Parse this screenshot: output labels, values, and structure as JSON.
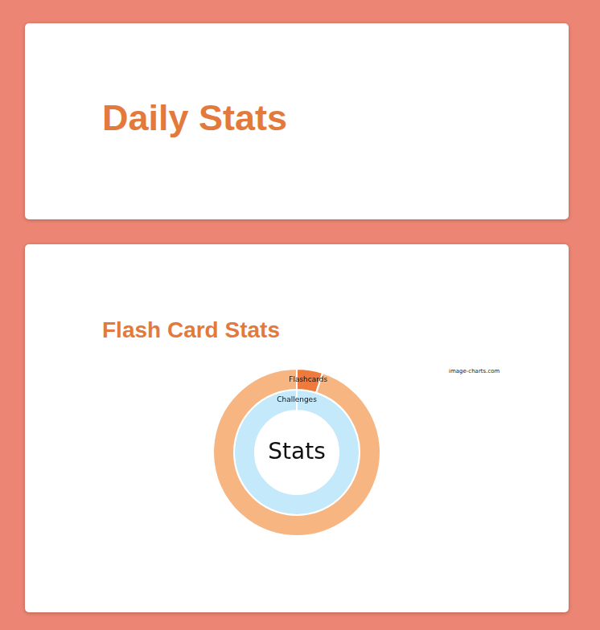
{
  "page": {
    "heading": "Daily Stats"
  },
  "chart_data": {
    "type": "doughnut",
    "title": "Flash Card Stats",
    "series": [
      {
        "name": "Flashcards",
        "colors": [
          "#ef7a3c",
          "#f6b581"
        ],
        "values": [
          5,
          95
        ]
      },
      {
        "name": "Challenges",
        "colors": [
          "#3d8fd6",
          "#c3e9fb"
        ],
        "values": [
          0,
          100
        ]
      }
    ],
    "annotations": [
      "Stats",
      "image-charts.com"
    ],
    "legend": "none"
  }
}
